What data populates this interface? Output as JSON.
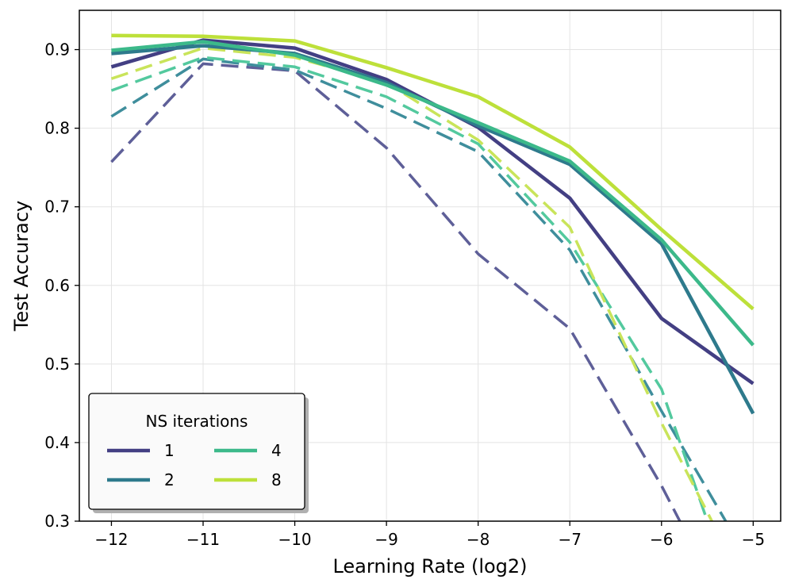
{
  "chart_data": {
    "type": "line",
    "xlabel": "Learning Rate (log2)",
    "ylabel": "Test Accuracy",
    "xlim": [
      -12.35,
      -4.7
    ],
    "ylim": [
      0.3,
      0.95
    ],
    "grid": true,
    "x_ticks": [
      -12,
      -11,
      -10,
      -9,
      -8,
      -7,
      -6,
      -5
    ],
    "x_tick_labels": [
      "−12",
      "−11",
      "−10",
      "−9",
      "−8",
      "−7",
      "−6",
      "−5"
    ],
    "y_ticks": [
      0.3,
      0.4,
      0.5,
      0.6,
      0.7,
      0.8,
      0.9
    ],
    "y_tick_labels": [
      "0.3",
      "0.4",
      "0.5",
      "0.6",
      "0.7",
      "0.8",
      "0.9"
    ],
    "legend": {
      "title": "NS iterations",
      "placement": "lower-left",
      "entries": [
        "1",
        "2",
        "4",
        "8"
      ]
    },
    "series": [
      {
        "name": "1",
        "style": "solid",
        "color": "#433f83",
        "x": [
          -12,
          -11,
          -10,
          -9,
          -8,
          -7,
          -6,
          -5
        ],
        "y": [
          0.878,
          0.912,
          0.902,
          0.862,
          0.801,
          0.711,
          0.558,
          0.475
        ]
      },
      {
        "name": "2",
        "style": "solid",
        "color": "#2e7a8c",
        "x": [
          -12,
          -11,
          -10,
          -9,
          -8,
          -7,
          -6,
          -5
        ],
        "y": [
          0.895,
          0.905,
          0.895,
          0.858,
          0.803,
          0.754,
          0.653,
          0.437
        ]
      },
      {
        "name": "4",
        "style": "solid",
        "color": "#3cb98a",
        "x": [
          -12,
          -11,
          -10,
          -9,
          -8,
          -7,
          -6,
          -5
        ],
        "y": [
          0.899,
          0.91,
          0.893,
          0.855,
          0.807,
          0.758,
          0.658,
          0.524
        ]
      },
      {
        "name": "8",
        "style": "solid",
        "color": "#bde03a",
        "x": [
          -12,
          -11,
          -10,
          -9,
          -8,
          -7,
          -6,
          -5
        ],
        "y": [
          0.918,
          0.917,
          0.911,
          0.877,
          0.84,
          0.776,
          0.671,
          0.57
        ]
      },
      {
        "style": "dashed",
        "color": "#5e5f98",
        "x": [
          -12,
          -11,
          -10,
          -9,
          -8,
          -7,
          -6,
          -5.8
        ],
        "y": [
          0.757,
          0.882,
          0.873,
          0.775,
          0.64,
          0.545,
          0.345,
          0.3
        ]
      },
      {
        "style": "dashed",
        "color": "#3f8e9c",
        "x": [
          -12,
          -11,
          -10,
          -9,
          -8,
          -7,
          -6,
          -5.3
        ],
        "y": [
          0.815,
          0.888,
          0.874,
          0.825,
          0.77,
          0.645,
          0.44,
          0.3
        ]
      },
      {
        "style": "dashed",
        "color": "#53c99e",
        "x": [
          -12,
          -11,
          -10,
          -9,
          -8,
          -7,
          -6,
          -5.5
        ],
        "y": [
          0.848,
          0.89,
          0.878,
          0.84,
          0.78,
          0.655,
          0.468,
          0.3
        ]
      },
      {
        "style": "dashed",
        "color": "#c9e45a",
        "x": [
          -12,
          -11,
          -10,
          -9,
          -8,
          -7,
          -6,
          -5.45
        ],
        "y": [
          0.863,
          0.902,
          0.89,
          0.858,
          0.785,
          0.674,
          0.425,
          0.3
        ]
      }
    ]
  }
}
